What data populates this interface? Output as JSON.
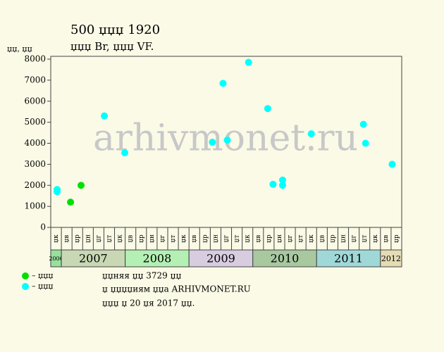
{
  "chart_data": {
    "type": "scatter",
    "title": "500 џџџ 1920",
    "subtitle": "џџџ Br, џџџ VF.",
    "y_label": "џџ, џџ",
    "watermark": "arhivmonet.ru",
    "notes": [
      "џџняя џџ 3729 џџ",
      "џ џџџџиям џџа ARHIVMONET.RU",
      "џџџ џ 20 џя 2017 џџ."
    ],
    "categories": [
      "џк",
      "џв",
      "џр",
      "џн",
      "џг",
      "џт",
      "џк",
      "џв",
      "џр",
      "џн",
      "џг",
      "џт",
      "џк",
      "џв",
      "џр",
      "џн",
      "џг",
      "џт",
      "џк",
      "џв",
      "џр",
      "џн",
      "џг",
      "џт",
      "џк",
      "џв",
      "џр",
      "џн",
      "џг",
      "џт",
      "џк",
      "џв",
      "џр"
    ],
    "years": [
      "2006",
      "2007",
      "2008",
      "2009",
      "2010",
      "2011",
      "2012"
    ],
    "year_columns": [
      1,
      6,
      6,
      6,
      6,
      6,
      2
    ],
    "year_colors": [
      "#98e09c",
      "#c8d8b4",
      "#b4f0b4",
      "#d8cce0",
      "#a8c8a0",
      "#a0d8d8",
      "#e4dcb4"
    ],
    "xlim": [
      0,
      33
    ],
    "ylim": [
      0,
      8000
    ],
    "yticks": [
      0,
      1000,
      2000,
      3000,
      4000,
      5000,
      6000,
      7000,
      8000
    ],
    "series": [
      {
        "name": "– џџџ",
        "color": "#00e000",
        "x": [
          1.86,
          2.85
        ],
        "values": [
          1200,
          2000
        ]
      },
      {
        "name": "– џџџ",
        "color": "#00ffff",
        "x": [
          0.6,
          0.6,
          5.04,
          6.96,
          15.2,
          16.2,
          16.6,
          18.6,
          20.4,
          20.9,
          21.8,
          21.8,
          24.5,
          29.4,
          29.6,
          32.1
        ],
        "values": [
          1800,
          1700,
          5300,
          3550,
          4050,
          6850,
          4150,
          7850,
          5650,
          2050,
          2250,
          2000,
          4450,
          4900,
          4000,
          3000
        ]
      }
    ]
  }
}
